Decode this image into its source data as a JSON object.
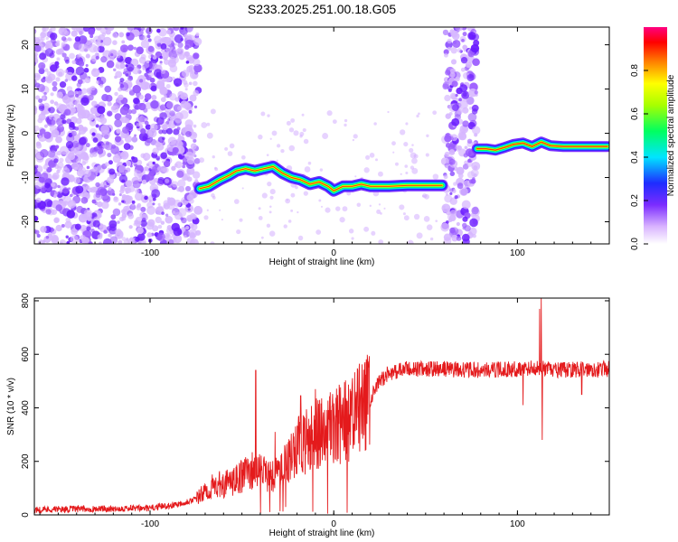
{
  "title": "S233.2025.251.00.18.G05",
  "colors": {
    "snr_line": "#e41a1c",
    "spectrogram_scatter": "#7b2cff",
    "axis": "#000000"
  },
  "chart_data": [
    {
      "type": "heatmap",
      "xlabel": "Height of straight line (km)",
      "ylabel": "Frequency (Hz)",
      "xlim": [
        -163,
        150
      ],
      "ylim": [
        -25,
        24
      ],
      "x_ticks": [
        -100,
        0,
        100
      ],
      "y_ticks": [
        -20,
        -10,
        0,
        10,
        20
      ],
      "colorbar": {
        "label": "Normalized spectral amplitude",
        "range": [
          0,
          1
        ],
        "ticks": [
          0.0,
          0.2,
          0.4,
          0.6,
          0.8
        ],
        "colormap": "rainbow (white-violet-blue-cyan-green-yellow-orange-red-magenta)"
      },
      "noise_regions_x": [
        [
          -163,
          -73
        ],
        [
          60,
          78
        ]
      ],
      "signal_track": {
        "x": [
          -73,
          -68,
          -62,
          -57,
          -53,
          -48,
          -43,
          -38,
          -33,
          -28,
          -23,
          -18,
          -13,
          -8,
          -3,
          0,
          5,
          10,
          15,
          20,
          30,
          40,
          50,
          59
        ],
        "y": [
          -12.5,
          -12,
          -10.5,
          -9.5,
          -8.5,
          -8,
          -8.5,
          -8,
          -7.5,
          -9,
          -10,
          -10.5,
          -11.5,
          -11,
          -12,
          -13,
          -12,
          -12,
          -11.5,
          -12,
          -12,
          -11.8,
          -11.8,
          -11.8
        ]
      },
      "signal_track_2": {
        "x": [
          78,
          83,
          88,
          93,
          98,
          103,
          108,
          113,
          118,
          125,
          135,
          145,
          149
        ],
        "y": [
          -3.5,
          -3.5,
          -3.8,
          -3.2,
          -2.5,
          -2.2,
          -3,
          -2,
          -2.8,
          -3,
          -3,
          -3,
          -3
        ]
      }
    },
    {
      "type": "line",
      "xlabel": "Height of straight line (km)",
      "ylabel": "SNR (10 * v/v)",
      "xlim": [
        -163,
        150
      ],
      "ylim": [
        0,
        810
      ],
      "x_ticks": [
        -100,
        0,
        100
      ],
      "y_ticks": [
        0,
        200,
        400,
        600,
        800
      ],
      "trend": {
        "x": [
          -163,
          -100,
          -85,
          -75,
          -65,
          -55,
          -45,
          -40,
          -30,
          -20,
          -10,
          0,
          10,
          15,
          20,
          25,
          30,
          40,
          50,
          60,
          80,
          100,
          110,
          120,
          140,
          150
        ],
        "y": [
          20,
          25,
          40,
          60,
          110,
          120,
          170,
          160,
          150,
          250,
          300,
          330,
          360,
          400,
          430,
          500,
          530,
          545,
          545,
          545,
          540,
          545,
          550,
          540,
          545,
          545
        ]
      },
      "spikes": [
        {
          "x": -42.5,
          "y": 540
        },
        {
          "x": -32,
          "y": 310
        },
        {
          "x": -18,
          "y": 445
        },
        {
          "x": -10,
          "y": 470
        },
        {
          "x": 113,
          "y": 810
        },
        {
          "x": 112,
          "y": 770
        }
      ],
      "dips": [
        {
          "x": 113.5,
          "y": 280
        },
        {
          "x": 103,
          "y": 410
        },
        {
          "x": 135,
          "y": 450
        }
      ]
    }
  ]
}
